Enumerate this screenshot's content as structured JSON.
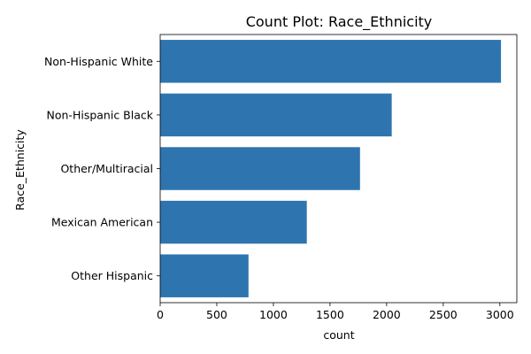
{
  "chart_data": {
    "type": "bar",
    "orientation": "horizontal",
    "title": "Count Plot: Race_Ethnicity",
    "xlabel": "count",
    "ylabel": "Race_Ethnicity",
    "categories": [
      "Non-Hispanic White",
      "Non-Hispanic Black",
      "Other/Multiracial",
      "Mexican American",
      "Other Hispanic"
    ],
    "values": [
      3010,
      2045,
      1765,
      1295,
      780
    ],
    "xlim": [
      0,
      3150
    ],
    "xticks": [
      0,
      500,
      1000,
      1500,
      2000,
      2500,
      3000
    ],
    "xtick_labels": [
      "0",
      "500",
      "1000",
      "1500",
      "2000",
      "2500",
      "3000"
    ],
    "bar_color": "#2e75b0",
    "grid": false,
    "legend": "none"
  }
}
